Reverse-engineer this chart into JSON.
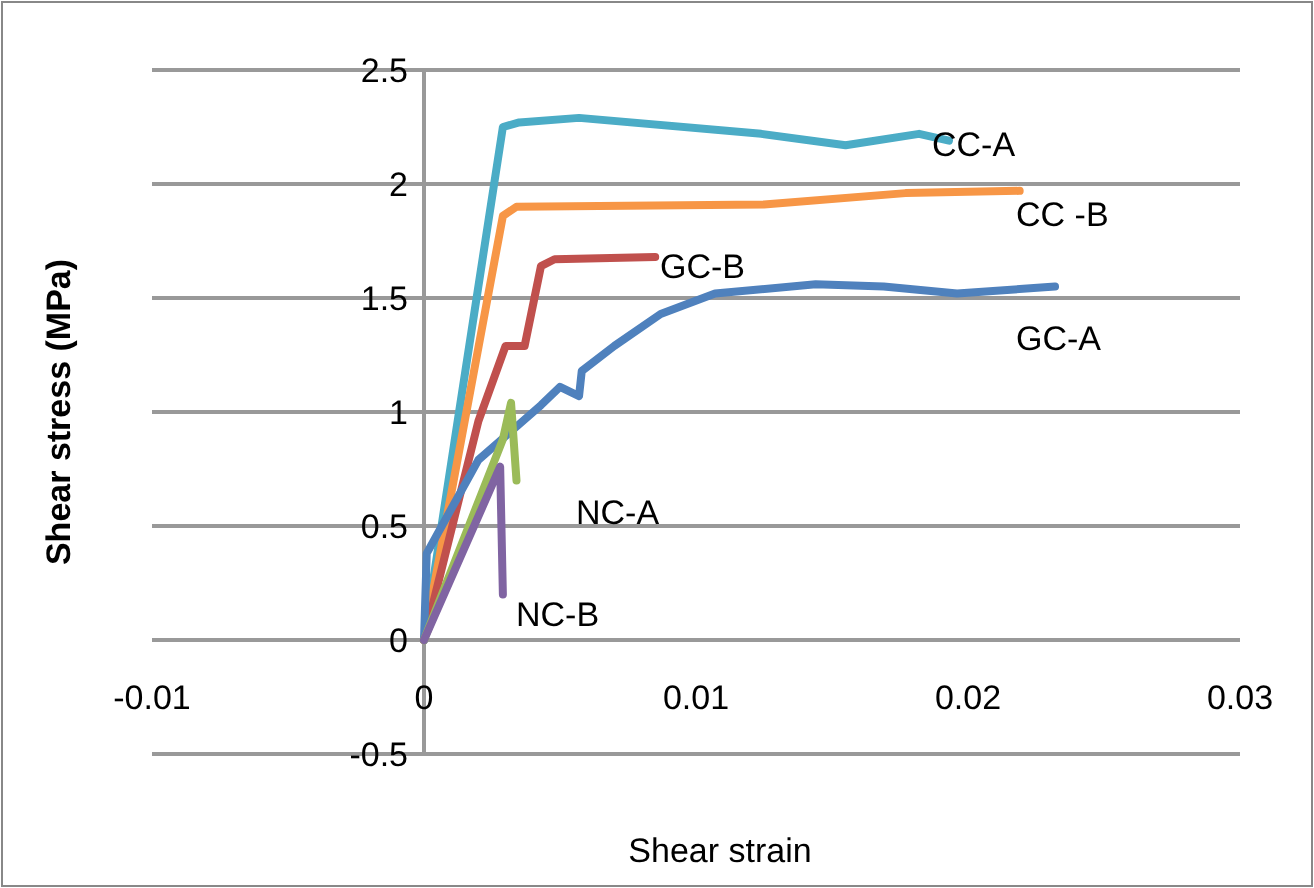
{
  "chart_data": {
    "type": "line",
    "xlabel": "Shear strain",
    "ylabel": "Shear stress (MPa)",
    "xlim": [
      -0.01,
      0.03
    ],
    "xticks": [
      -0.01,
      0,
      0.01,
      0.02,
      0.03
    ],
    "ylim": [
      -0.5,
      2.5
    ],
    "yticks": [
      -0.5,
      0,
      0.5,
      1,
      1.5,
      2,
      2.5
    ],
    "grid": "y",
    "marker": "none",
    "line_style": "solid",
    "series": [
      {
        "name": "CC-A",
        "color": "#4bacc6",
        "x": [
          0,
          0.0029,
          0.0035,
          0.0057,
          0.0124,
          0.0155,
          0.0182,
          0.0193
        ],
        "values": [
          0,
          2.25,
          2.27,
          2.29,
          2.22,
          2.17,
          2.22,
          2.19
        ]
      },
      {
        "name": "CC -B",
        "color": "#f79646",
        "x": [
          0,
          0.0029,
          0.0034,
          0.0125,
          0.0177,
          0.0219
        ],
        "values": [
          0,
          1.86,
          1.9,
          1.91,
          1.96,
          1.97
        ]
      },
      {
        "name": "GC-B",
        "color": "#c0504d",
        "x": [
          0,
          0.002,
          0.003,
          0.0037,
          0.0043,
          0.0048,
          0.0085
        ],
        "values": [
          0,
          0.96,
          1.29,
          1.29,
          1.64,
          1.67,
          1.68
        ]
      },
      {
        "name": "GC-A",
        "color": "#4f81bd",
        "x": [
          0,
          0.0001,
          0.002,
          0.0043,
          0.005,
          0.0057,
          0.0058,
          0.007,
          0.0087,
          0.0107,
          0.0144,
          0.0169,
          0.0196,
          0.0232
        ],
        "values": [
          0,
          0.38,
          0.79,
          1.03,
          1.11,
          1.07,
          1.18,
          1.29,
          1.43,
          1.52,
          1.56,
          1.55,
          1.52,
          1.55
        ]
      },
      {
        "name": "NC-A",
        "color": "#9bbb59",
        "x": [
          0,
          0.0029,
          0.0032,
          0.0034
        ],
        "values": [
          0,
          0.88,
          1.04,
          0.7
        ]
      },
      {
        "name": "NC-B",
        "color": "#8064a2",
        "x": [
          0,
          0.0028,
          0.0029
        ],
        "values": [
          0,
          0.76,
          0.2
        ]
      }
    ]
  }
}
